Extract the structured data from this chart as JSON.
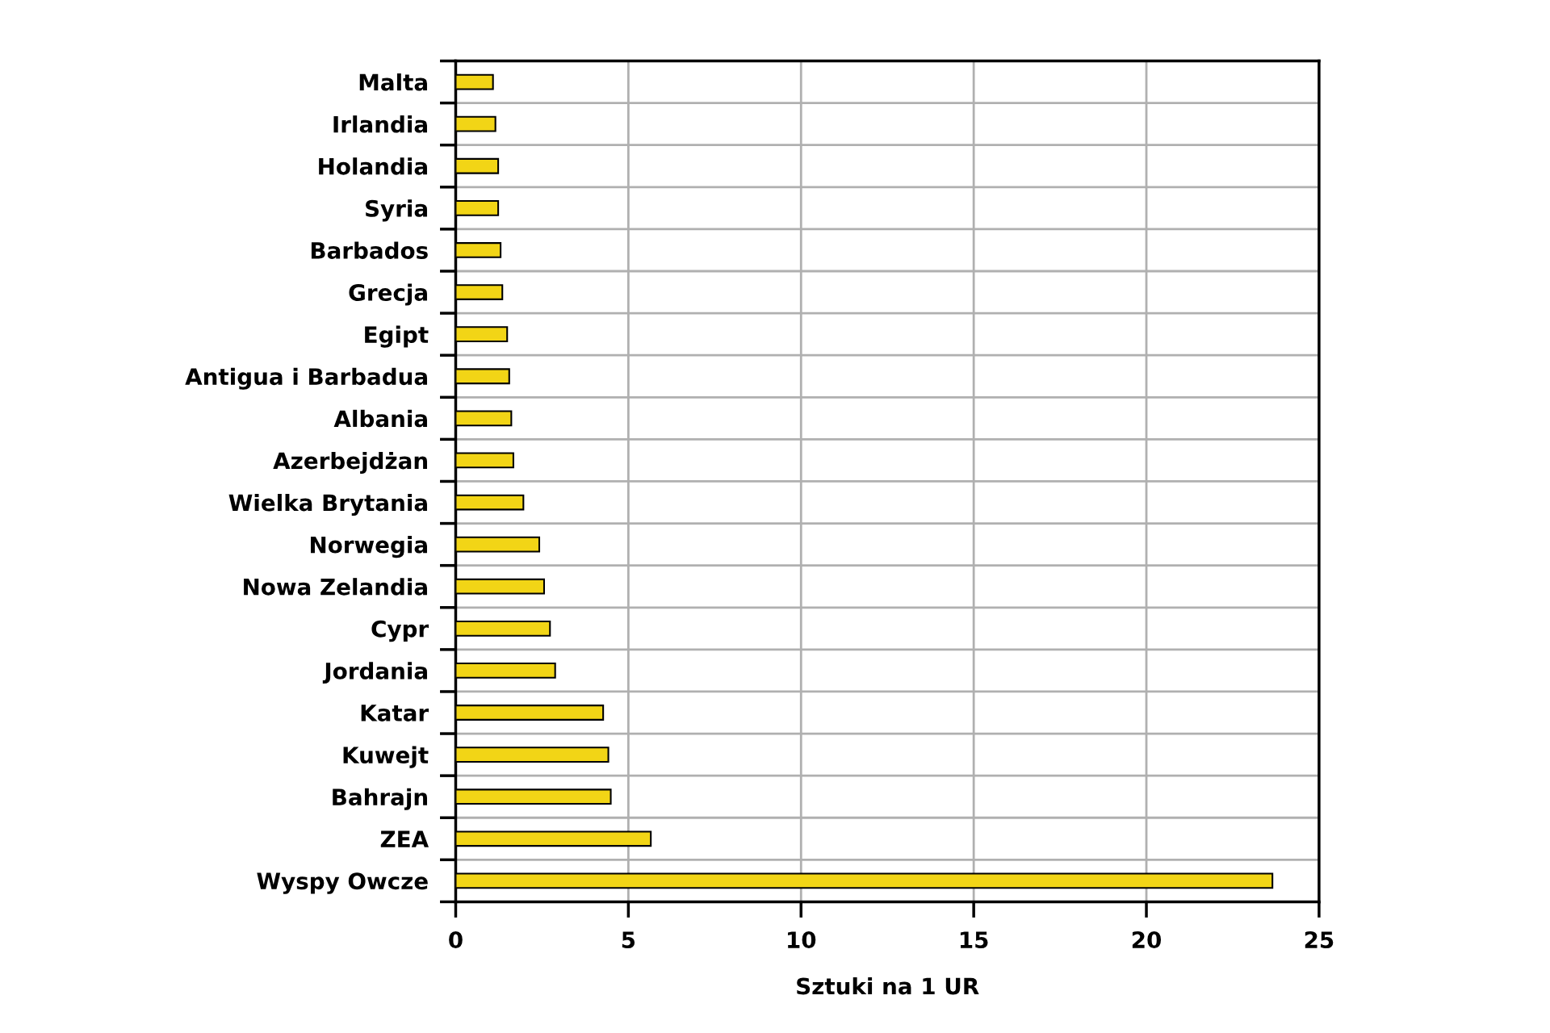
{
  "chart_data": {
    "type": "bar",
    "orientation": "horizontal",
    "xlabel": "Sztuki na 1 UR",
    "categories": [
      "Malta",
      "Irlandia",
      "Holandia",
      "Syria",
      "Barbados",
      "Grecja",
      "Egipt",
      "Antigua i Barbadua",
      "Albania",
      "Azerbejdżan",
      "Wielka Brytania",
      "Norwegia",
      "Nowa Zelandia",
      "Cypr",
      "Jordania",
      "Katar",
      "Kuwejt",
      "Bahrajn",
      "ZEA",
      "Wyspy Owcze"
    ],
    "values": [
      1.08,
      1.15,
      1.23,
      1.23,
      1.3,
      1.35,
      1.49,
      1.55,
      1.61,
      1.67,
      1.96,
      2.42,
      2.56,
      2.73,
      2.88,
      4.27,
      4.42,
      4.49,
      5.65,
      23.65
    ],
    "color": "#f2d516",
    "xlim": [
      0,
      25
    ],
    "xticks": [
      0,
      5,
      10,
      15,
      20,
      25
    ],
    "grid": true
  }
}
